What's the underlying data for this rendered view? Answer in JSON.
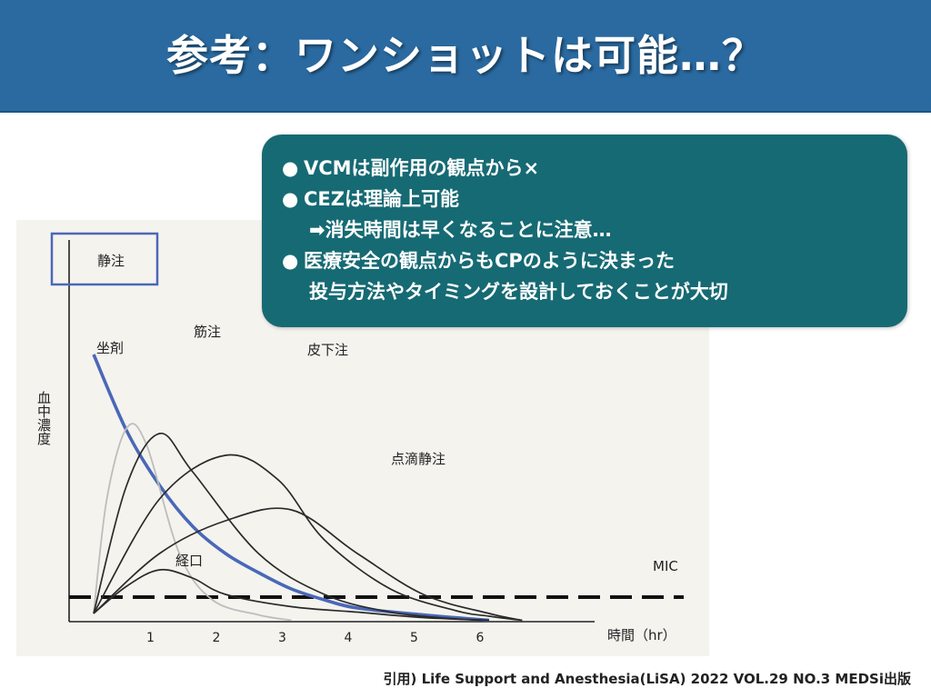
{
  "slide": {
    "title": "参考：ワンショットは可能…？",
    "citation": "引用) Life Support and Anesthesia(LiSA) 2022 VOL.29 NO.3 MEDSi出版",
    "colors": {
      "title_bar": "#2a6aa0",
      "callout": "#166a73",
      "iv_line": "#4a68b8"
    }
  },
  "callout": {
    "bullet_symbol": "●",
    "line1": "VCMは副作用の観点から×",
    "line2": "CEZは理論上可能",
    "line3": "➡消失時間は早くなることに注意…",
    "line4": "医療安全の観点からもCPのように決まった",
    "line5": "投与方法やタイミングを設計しておくことが大切"
  },
  "chart_data": {
    "type": "line",
    "ylabel": "血中濃度",
    "xlabel": "時間（hr）",
    "x_ticks": [
      "1",
      "2",
      "3",
      "4",
      "5",
      "6"
    ],
    "xlim": [
      0,
      6
    ],
    "threshold_label": "MIC",
    "series": [
      {
        "name": "静注",
        "points": [
          [
            0,
            9.8
          ],
          [
            0.5,
            7.0
          ],
          [
            1,
            5.0
          ],
          [
            1.5,
            3.5
          ],
          [
            2,
            2.5
          ],
          [
            2.5,
            1.8
          ],
          [
            3,
            1.2
          ],
          [
            3.5,
            0.8
          ],
          [
            4,
            0.5
          ],
          [
            5,
            0.25
          ],
          [
            6,
            0.05
          ]
        ]
      },
      {
        "name": "坐剤",
        "points": [
          [
            0,
            0.3
          ],
          [
            0.2,
            4.5
          ],
          [
            0.5,
            7.1
          ],
          [
            0.8,
            6.5
          ],
          [
            1.3,
            2.5
          ],
          [
            1.8,
            0.8
          ],
          [
            2.5,
            0.25
          ],
          [
            3,
            0.05
          ]
        ]
      },
      {
        "name": "筋注",
        "points": [
          [
            0,
            0.3
          ],
          [
            0.5,
            5.0
          ],
          [
            1,
            6.9
          ],
          [
            1.5,
            5.5
          ],
          [
            2.5,
            2.5
          ],
          [
            3.5,
            1.0
          ],
          [
            4.5,
            0.35
          ],
          [
            5.5,
            0.1
          ],
          [
            6,
            0.05
          ]
        ]
      },
      {
        "name": "皮下注",
        "points": [
          [
            0,
            0.3
          ],
          [
            1,
            4.5
          ],
          [
            2,
            6.1
          ],
          [
            2.8,
            5.2
          ],
          [
            3.5,
            3.0
          ],
          [
            4.5,
            1.2
          ],
          [
            5.5,
            0.4
          ],
          [
            6,
            0.2
          ],
          [
            6.5,
            0.05
          ]
        ]
      },
      {
        "name": "点滴静注",
        "points": [
          [
            0,
            0.3
          ],
          [
            1,
            2.5
          ],
          [
            2,
            3.7
          ],
          [
            3,
            4.1
          ],
          [
            4,
            2.5
          ],
          [
            5,
            1.0
          ],
          [
            6,
            0.3
          ],
          [
            6.5,
            0.05
          ]
        ]
      },
      {
        "name": "経口",
        "points": [
          [
            0,
            0.3
          ],
          [
            0.5,
            1.3
          ],
          [
            1,
            1.9
          ],
          [
            1.5,
            1.6
          ],
          [
            2,
            1.0
          ],
          [
            3,
            0.55
          ],
          [
            4,
            0.35
          ],
          [
            5,
            0.15
          ],
          [
            6,
            0.05
          ]
        ]
      }
    ],
    "mic_level": 0.9,
    "grid": false,
    "legend": "inline labels"
  }
}
